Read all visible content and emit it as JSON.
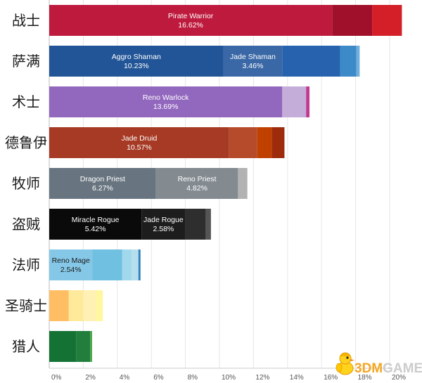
{
  "chart_data": {
    "type": "bar",
    "orientation": "horizontal",
    "stacked": true,
    "x_unit": "%",
    "xlim": [
      0,
      20
    ],
    "x_ticks": [
      "0%",
      "2%",
      "4%",
      "6%",
      "8%",
      "10%",
      "12%",
      "14%",
      "16%",
      "18%",
      "20%"
    ],
    "grid": "vertical",
    "categories": [
      {
        "name": "战士",
        "segments": [
          {
            "label": "Pirate Warrior",
            "pct": "16.62%",
            "value": 16.62,
            "color": "#BE1A3D",
            "text_color": "#ffffff"
          },
          {
            "value": 2.35,
            "color": "#A0102A"
          },
          {
            "value": 1.75,
            "color": "#D41F28"
          }
        ]
      },
      {
        "name": "萨满",
        "segments": [
          {
            "label": "Aggro Shaman",
            "pct": "10.23%",
            "value": 10.23,
            "color": "#225597",
            "text_color": "#ffffff"
          },
          {
            "label": "Jade Shaman",
            "pct": "3.46%",
            "value": 3.46,
            "color": "#3A68A6",
            "text_color": "#ffffff"
          },
          {
            "value": 3.4,
            "color": "#2662AD"
          },
          {
            "value": 0.95,
            "color": "#3D8AC8"
          },
          {
            "value": 0.2,
            "color": "#72AEDC"
          }
        ]
      },
      {
        "name": "术士",
        "segments": [
          {
            "label": "Reno Warlock",
            "pct": "13.69%",
            "value": 13.69,
            "color": "#9267BE",
            "text_color": "#ffffff"
          },
          {
            "value": 1.4,
            "color": "#C4ADD8"
          },
          {
            "value": 0.2,
            "color": "#C13A92"
          }
        ]
      },
      {
        "name": "德鲁伊",
        "segments": [
          {
            "label": "Jade Druid",
            "pct": "10.57%",
            "value": 10.57,
            "color": "#A63A24",
            "text_color": "#ffffff"
          },
          {
            "value": 1.65,
            "color": "#B54B2A"
          },
          {
            "value": 0.85,
            "color": "#C04000"
          },
          {
            "value": 0.75,
            "color": "#9E2C0C"
          }
        ]
      },
      {
        "name": "牧师",
        "segments": [
          {
            "label": "Dragon Priest",
            "pct": "6.27%",
            "value": 6.27,
            "color": "#687580",
            "text_color": "#ffffff"
          },
          {
            "label": "Reno Priest",
            "pct": "4.82%",
            "value": 4.82,
            "color": "#838B91",
            "text_color": "#ffffff"
          },
          {
            "value": 0.55,
            "color": "#B2B2B2"
          }
        ]
      },
      {
        "name": "盗贼",
        "segments": [
          {
            "label": "Miracle Rogue",
            "pct": "5.42%",
            "value": 5.42,
            "color": "#0A0A0A",
            "text_color": "#ffffff"
          },
          {
            "label": "Jade Rogue",
            "pct": "2.58%",
            "value": 2.58,
            "color": "#1D1D1D",
            "text_color": "#ffffff"
          },
          {
            "value": 1.2,
            "color": "#2E2E2E"
          },
          {
            "value": 0.3,
            "color": "#555555"
          }
        ]
      },
      {
        "name": "法师",
        "segments": [
          {
            "label": "Reno Mage",
            "pct": "2.54%",
            "value": 2.54,
            "color": "#85C7E6",
            "text_color": "#1a1a1a"
          },
          {
            "value": 1.75,
            "color": "#6FC0E1"
          },
          {
            "value": 0.55,
            "color": "#A2D8EC"
          },
          {
            "value": 0.4,
            "color": "#B6DFEE"
          },
          {
            "value": 0.12,
            "color": "#2B7EC1"
          }
        ]
      },
      {
        "name": "圣骑士",
        "segments": [
          {
            "value": 1.15,
            "color": "#FFBE64"
          },
          {
            "value": 0.85,
            "color": "#FFE99A"
          },
          {
            "value": 0.75,
            "color": "#FFF1B3"
          },
          {
            "value": 0.4,
            "color": "#FFF7A0"
          }
        ]
      },
      {
        "name": "猎人",
        "segments": [
          {
            "value": 1.6,
            "color": "#157235"
          },
          {
            "value": 0.8,
            "color": "#217E3D"
          },
          {
            "value": 0.12,
            "color": "#4FA64F"
          }
        ]
      }
    ]
  },
  "watermark": {
    "brand": "3DMGAME",
    "brand_prefix": "3DM",
    "brand_suffix": "GAME",
    "prefix_color": "#F5A623",
    "suffix_color": "#CCCCCC",
    "icon": "chick-mascot-icon"
  }
}
